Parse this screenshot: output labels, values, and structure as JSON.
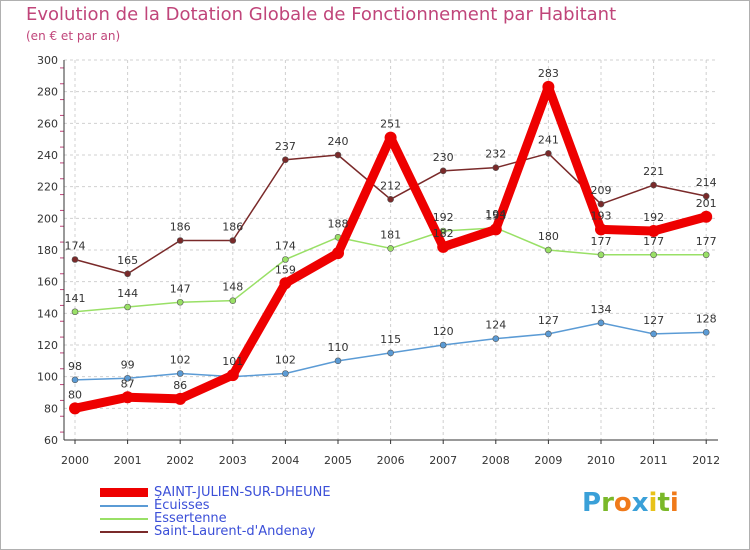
{
  "title": "Evolution de la Dotation Globale de Fonctionnement par Habitant",
  "subtitle": "(en € et par an)",
  "logo_text": "Proxiti",
  "chart_data": {
    "type": "line",
    "title": "Evolution de la Dotation Globale de Fonctionnement par Habitant",
    "ylabel": "(en € et par an)",
    "xlabel": "",
    "categories": [
      "2000",
      "2001",
      "2002",
      "2003",
      "2004",
      "2005",
      "2006",
      "2007",
      "2008",
      "2009",
      "2010",
      "2011",
      "2012"
    ],
    "ylim": [
      60,
      300
    ],
    "yticks": [
      60,
      80,
      100,
      120,
      140,
      160,
      180,
      200,
      220,
      240,
      260,
      280,
      300
    ],
    "grid": true,
    "legend_position": "bottom-left",
    "series": [
      {
        "name": "SAINT-JULIEN-SUR-DHEUNE",
        "color": "#ee0000",
        "values": [
          80,
          87,
          86,
          101,
          159,
          178,
          251,
          182,
          193,
          283,
          193,
          192,
          201
        ],
        "labels": [
          "80",
          "87",
          "86",
          "101",
          "159",
          "",
          "251",
          "182",
          "193",
          "283",
          "193",
          "192",
          "201"
        ]
      },
      {
        "name": "Écuisses",
        "color": "#5b9bd5",
        "values": [
          98,
          99,
          102,
          100,
          102,
          110,
          115,
          120,
          124,
          127,
          134,
          127,
          128
        ],
        "labels": [
          "98",
          "99",
          "102",
          "",
          "102",
          "110",
          "115",
          "120",
          "124",
          "127",
          "134",
          "127",
          "128"
        ]
      },
      {
        "name": "Essertenne",
        "color": "#99e066",
        "values": [
          141,
          144,
          147,
          148,
          174,
          188,
          181,
          192,
          194,
          180,
          177,
          177,
          177
        ],
        "labels": [
          "141",
          "144",
          "147",
          "148",
          "174",
          "188",
          "181",
          "192",
          "194",
          "180",
          "177",
          "177",
          "177"
        ]
      },
      {
        "name": "Saint-Laurent-d'Andenay",
        "color": "#7a2a2a",
        "values": [
          174,
          165,
          186,
          186,
          237,
          240,
          212,
          230,
          232,
          241,
          209,
          221,
          214
        ],
        "labels": [
          "174",
          "165",
          "186",
          "186",
          "237",
          "240",
          "212",
          "230",
          "232",
          "241",
          "209",
          "221",
          "214"
        ]
      }
    ]
  }
}
